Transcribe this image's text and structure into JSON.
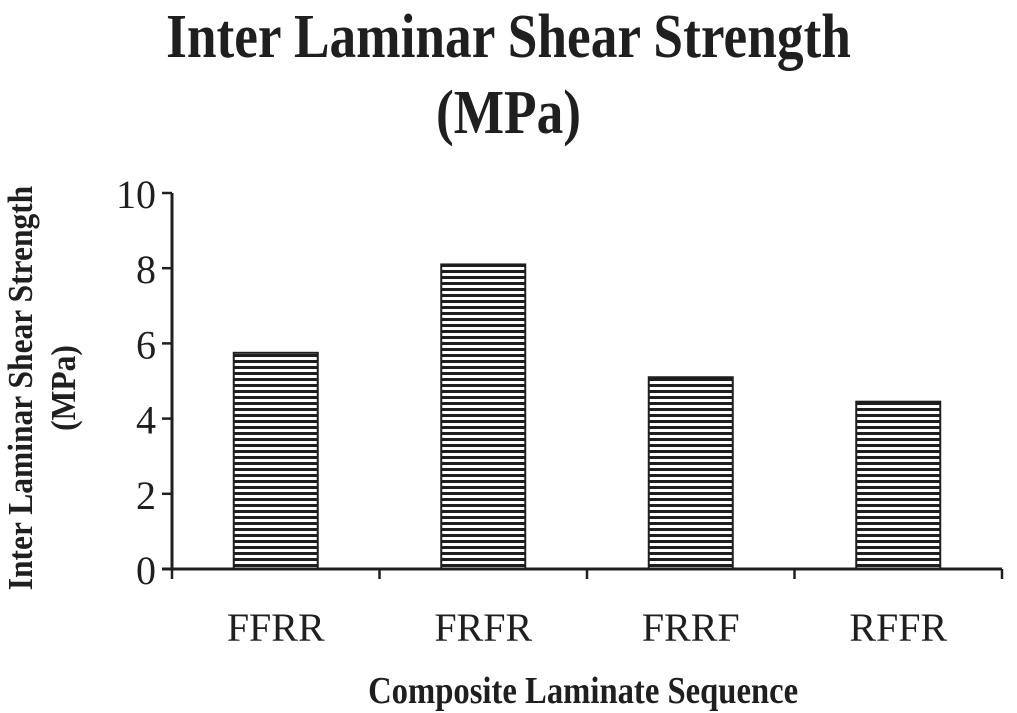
{
  "chart_data": {
    "type": "bar",
    "title": [
      "Inter Laminar Shear Strength",
      "(MPa)"
    ],
    "xlabel": "Composite Laminate Sequence",
    "ylabel": [
      "Inter Laminar Shear Strength",
      "(MPa)"
    ],
    "categories": [
      "FFRR",
      "FRFR",
      "FRRF",
      "RFFR"
    ],
    "values": [
      5.75,
      8.1,
      5.1,
      4.45
    ],
    "ylim": [
      0,
      10
    ],
    "yticks": [
      0,
      2,
      4,
      6,
      8,
      10
    ],
    "grid": false,
    "legend": "none",
    "bar_pattern": "horizontal-stripes",
    "colors": {
      "ink": "#1f1f1f",
      "bar_fill": "#ffffff",
      "background": "#ffffff"
    }
  }
}
